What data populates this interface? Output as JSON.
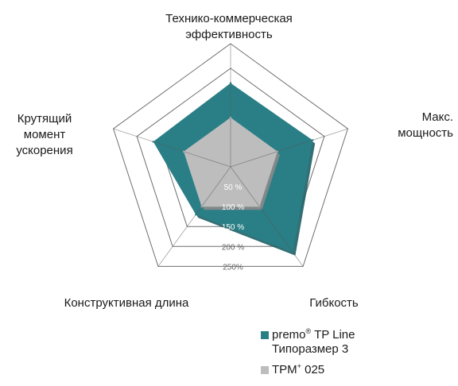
{
  "chart_data": {
    "type": "radar",
    "axes": [
      {
        "key": "top",
        "lines": [
          "Технико-коммерческая",
          "эффективность"
        ]
      },
      {
        "key": "right",
        "lines": [
          "Макс.",
          "мощность"
        ]
      },
      {
        "key": "bottom_right",
        "lines": [
          "Гибкость"
        ]
      },
      {
        "key": "bottom_left",
        "lines": [
          "Конструктивная длина"
        ]
      },
      {
        "key": "left",
        "lines": [
          "Крутящий",
          "момент",
          "ускорения"
        ]
      }
    ],
    "rings": [
      50,
      100,
      150,
      200,
      250
    ],
    "ring_labels": [
      "50 %",
      "100 %",
      "150 %",
      "200 %",
      "250%"
    ],
    "rmax": 250,
    "series": [
      {
        "name": "premo® TP Line Типоразмер 3",
        "color": "#2a7f86",
        "values": [
          170,
          175,
          215,
          120,
          165
        ]
      },
      {
        "name": "TPM+ 025",
        "color": "#bdbdbd",
        "values": [
          100,
          100,
          100,
          100,
          100
        ]
      }
    ]
  },
  "legend": {
    "items": [
      {
        "brand": "premo",
        "sup": "®",
        "rest": " TP Line",
        "line2": "Типоразмер 3",
        "color": "#2a7f86"
      },
      {
        "brand": "TPM",
        "sup": "+",
        "rest": " 025",
        "line2": "",
        "color": "#bdbdbd"
      }
    ]
  }
}
